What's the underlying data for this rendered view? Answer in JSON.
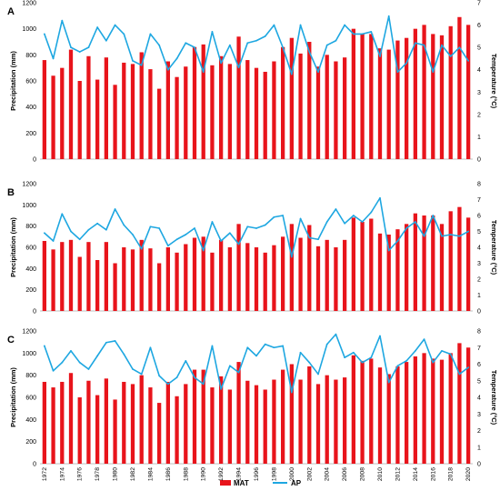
{
  "chart_data": {
    "type": "bar",
    "x": [
      1972,
      1973,
      1974,
      1975,
      1976,
      1977,
      1978,
      1979,
      1980,
      1981,
      1982,
      1983,
      1984,
      1985,
      1986,
      1987,
      1988,
      1989,
      1990,
      1991,
      1992,
      1993,
      1994,
      1995,
      1996,
      1997,
      1998,
      1999,
      2000,
      2001,
      2002,
      2003,
      2004,
      2005,
      2006,
      2007,
      2008,
      2009,
      2010,
      2011,
      2012,
      2013,
      2014,
      2015,
      2016,
      2017,
      2018,
      2019,
      2020
    ],
    "legend": {
      "placement": "bottom",
      "entries": [
        {
          "key": "precip",
          "name": "MAT",
          "color": "#e8141b",
          "marker": "bar"
        },
        {
          "key": "temp",
          "name": "AP",
          "color": "#1ea7e1",
          "marker": "line"
        }
      ]
    },
    "panels": [
      {
        "label": "A",
        "ylabel_left": "Precipitation (mm)",
        "ylabel_right": "Temperature (°C)",
        "ylim_left": [
          0,
          1200
        ],
        "ylim_right": [
          0,
          7
        ],
        "yticks_left": [
          0,
          200,
          400,
          600,
          800,
          1000,
          1200
        ],
        "yticks_right": [
          0,
          1,
          2,
          3,
          4,
          5,
          6,
          7
        ],
        "series": [
          {
            "key": "precip",
            "name": "MAT",
            "values": [
              760,
              640,
              700,
              840,
              600,
              790,
              610,
              780,
              570,
              740,
              730,
              820,
              690,
              540,
              750,
              630,
              710,
              860,
              880,
              720,
              790,
              730,
              940,
              760,
              700,
              670,
              750,
              860,
              930,
              810,
              900,
              710,
              800,
              750,
              780,
              1000,
              960,
              960,
              850,
              840,
              910,
              930,
              1000,
              1030,
              960,
              950,
              1020,
              1090,
              1030
            ]
          },
          {
            "key": "temp",
            "name": "AP",
            "values": [
              5.6,
              4.5,
              6.2,
              5.0,
              4.8,
              5.0,
              5.9,
              5.3,
              6.0,
              5.6,
              4.4,
              4.2,
              5.6,
              5.1,
              4.0,
              4.5,
              5.2,
              5.0,
              3.9,
              5.7,
              4.3,
              5.1,
              4.1,
              5.2,
              5.3,
              5.5,
              6.0,
              5.0,
              3.8,
              6.0,
              4.8,
              3.9,
              5.1,
              5.3,
              6.0,
              5.6,
              5.6,
              5.7,
              4.6,
              6.4,
              3.9,
              4.3,
              5.2,
              5.1,
              3.9,
              5.1,
              4.6,
              5.0,
              4.4
            ]
          }
        ]
      },
      {
        "label": "B",
        "ylabel_left": "Precipitation (mm)",
        "ylabel_right": "Temperature (°C)",
        "ylim_left": [
          0,
          1200
        ],
        "ylim_right": [
          0,
          8
        ],
        "yticks_left": [
          0,
          200,
          400,
          600,
          800,
          1000,
          1200
        ],
        "yticks_right": [
          0,
          1,
          2,
          3,
          4,
          5,
          6,
          7,
          8
        ],
        "series": [
          {
            "key": "precip",
            "name": "MAT",
            "values": [
              660,
              580,
              650,
              670,
              510,
              650,
              480,
              650,
              450,
              600,
              580,
              670,
              590,
              450,
              600,
              550,
              630,
              690,
              700,
              550,
              670,
              600,
              820,
              640,
              600,
              550,
              620,
              700,
              820,
              690,
              810,
              610,
              670,
              600,
              670,
              880,
              840,
              870,
              730,
              720,
              770,
              820,
              920,
              900,
              900,
              820,
              940,
              980,
              880
            ]
          },
          {
            "key": "temp",
            "name": "AP",
            "values": [
              4.9,
              4.4,
              6.1,
              5.0,
              4.5,
              5.1,
              5.5,
              5.1,
              6.4,
              5.4,
              4.8,
              3.9,
              5.3,
              5.2,
              4.1,
              4.5,
              4.8,
              5.2,
              3.8,
              5.6,
              4.4,
              4.9,
              4.2,
              5.3,
              5.2,
              5.4,
              5.9,
              6.0,
              3.4,
              5.8,
              4.6,
              4.5,
              5.6,
              6.4,
              5.5,
              6.0,
              5.6,
              6.2,
              7.1,
              3.8,
              4.4,
              5.2,
              5.6,
              4.7,
              6.0,
              4.7,
              4.8,
              4.7,
              5.0
            ]
          }
        ]
      },
      {
        "label": "C",
        "ylabel_left": "Precipitation (mm)",
        "ylabel_right": "Temperature (°C)",
        "ylim_left": [
          0,
          1200
        ],
        "ylim_right": [
          0,
          8
        ],
        "yticks_left": [
          0,
          200,
          400,
          600,
          800,
          1000,
          1200
        ],
        "yticks_right": [
          0,
          1,
          2,
          3,
          4,
          5,
          6,
          7,
          8
        ],
        "series": [
          {
            "key": "precip",
            "name": "MAT",
            "values": [
              740,
              690,
              740,
              820,
              600,
              750,
              620,
              770,
              580,
              740,
              720,
              800,
              690,
              550,
              740,
              610,
              720,
              850,
              850,
              690,
              790,
              670,
              920,
              750,
              710,
              670,
              760,
              850,
              900,
              760,
              880,
              720,
              800,
              760,
              780,
              980,
              930,
              950,
              870,
              810,
              880,
              920,
              970,
              1000,
              950,
              940,
              1000,
              1090,
              1050
            ]
          },
          {
            "key": "temp",
            "name": "AP",
            "values": [
              7.1,
              5.6,
              6.1,
              6.8,
              6.1,
              5.7,
              6.5,
              7.3,
              7.4,
              6.6,
              5.7,
              5.4,
              7.0,
              5.3,
              4.8,
              5.2,
              6.2,
              5.2,
              4.8,
              7.1,
              4.5,
              5.9,
              5.5,
              7.0,
              6.5,
              7.2,
              7.0,
              7.1,
              4.3,
              6.7,
              6.1,
              5.4,
              7.2,
              7.8,
              6.4,
              6.7,
              6.1,
              6.4,
              7.7,
              4.9,
              5.9,
              6.2,
              6.8,
              7.5,
              6.1,
              6.8,
              6.6,
              5.4,
              5.8
            ]
          }
        ]
      }
    ]
  }
}
